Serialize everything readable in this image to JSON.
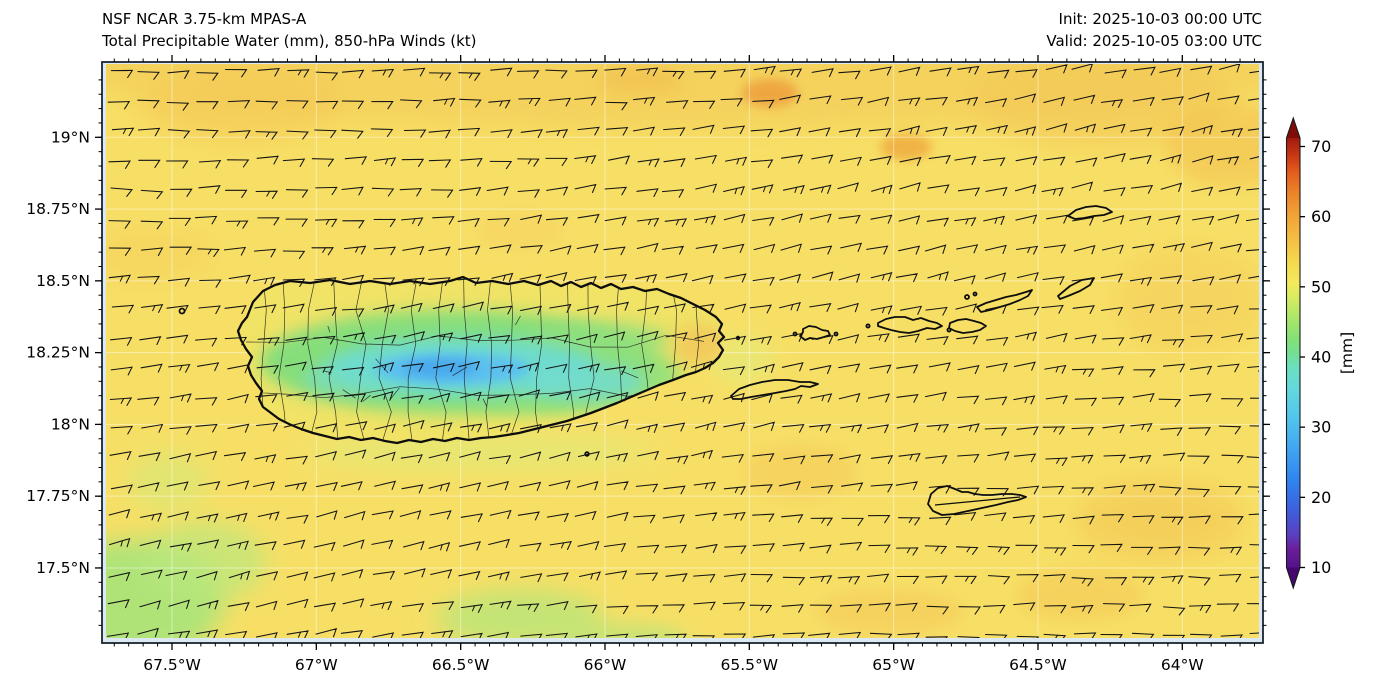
{
  "header": {
    "model": "NSF NCAR 3.75-km MPAS-A",
    "field": "Total Precipitable Water (mm), 850-hPa Winds (kt)",
    "init": "Init: 2025-10-03 00:00 UTC",
    "valid": "Valid: 2025-10-05 03:00 UTC"
  },
  "axes": {
    "x_tick_labels": [
      "67.5°W",
      "67°W",
      "66.5°W",
      "66°W",
      "65.5°W",
      "65°W",
      "64.5°W",
      "64°W"
    ],
    "x_tick_lons": [
      -67.5,
      -67.0,
      -66.5,
      -66.0,
      -65.5,
      -65.0,
      -64.5,
      -64.0
    ],
    "y_tick_labels": [
      "19°N",
      "18.75°N",
      "18.5°N",
      "18.25°N",
      "18°N",
      "17.75°N",
      "17.5°N"
    ],
    "y_tick_lats": [
      19.0,
      18.75,
      18.5,
      18.25,
      18.0,
      17.75,
      17.5
    ]
  },
  "colorbar": {
    "label": "[mm]",
    "tick_labels": [
      "10",
      "20",
      "30",
      "40",
      "50",
      "60",
      "70"
    ],
    "tick_values": [
      10,
      20,
      30,
      40,
      50,
      60,
      70
    ],
    "vmin": 10,
    "vmax": 70,
    "arrow_top_color": "#7e0d0a",
    "arrow_bottom_color": "#45076f",
    "stops": [
      {
        "v": 9.4,
        "c": "#53128a"
      },
      {
        "v": 12,
        "c": "#6b1d9a"
      },
      {
        "v": 14,
        "c": "#5a3fc0"
      },
      {
        "v": 18,
        "c": "#3b63e0"
      },
      {
        "v": 22,
        "c": "#2f86f0"
      },
      {
        "v": 27,
        "c": "#43aaf2"
      },
      {
        "v": 31,
        "c": "#52c6ec"
      },
      {
        "v": 35,
        "c": "#63d9dc"
      },
      {
        "v": 38,
        "c": "#6cdfc0"
      },
      {
        "v": 40,
        "c": "#74df93"
      },
      {
        "v": 42,
        "c": "#83e077"
      },
      {
        "v": 45,
        "c": "#abe668"
      },
      {
        "v": 48,
        "c": "#d9ec60"
      },
      {
        "v": 50,
        "c": "#f3ea5c"
      },
      {
        "v": 53,
        "c": "#f6d94f"
      },
      {
        "v": 56,
        "c": "#f5c044"
      },
      {
        "v": 60,
        "c": "#f0a035"
      },
      {
        "v": 63,
        "c": "#ec8228"
      },
      {
        "v": 66,
        "c": "#e25b1c"
      },
      {
        "v": 68,
        "c": "#cc3a13"
      },
      {
        "v": 70.7,
        "c": "#a01a0d"
      }
    ]
  },
  "map_colors": {
    "ocean_base": "#f7df66",
    "ocean_top_band": "#f3cc58",
    "orange_patch": "#efa53d",
    "green_patch": "#aae57b",
    "island_base": "#f0e366",
    "island_green": "#86de7a",
    "island_cyan": "#6edccd",
    "island_blue": "#4aa9ec",
    "plot_background": "#dde9f2",
    "border": "#1a2530",
    "barb": "#141414"
  },
  "chart_data": {
    "type": "heatmap",
    "title": "NSF NCAR 3.75-km MPAS-A — Total Precipitable Water (mm), 850-hPa Winds (kt)",
    "field": "Total Precipitable Water",
    "units": "mm",
    "overlay": "850-hPa wind barbs (kt)",
    "init_time": "2025-10-03 00:00 UTC",
    "valid_time": "2025-10-05 03:00 UTC",
    "extent": {
      "lon_min": -67.74,
      "lon_max": -63.72,
      "lat_min": 17.24,
      "lat_max": 19.26
    },
    "x_ticks_deg": [
      -67.5,
      -67.0,
      -66.5,
      -66.0,
      -65.5,
      -65.0,
      -64.5,
      -64.0
    ],
    "y_ticks_deg": [
      19.0,
      18.75,
      18.5,
      18.25,
      18.0,
      17.75,
      17.5
    ],
    "colorbar_range": [
      10,
      70
    ],
    "colorbar_ticks": [
      10,
      20,
      30,
      40,
      50,
      60,
      70
    ],
    "colorbar_extended_both_ends": true,
    "field_summary": {
      "ocean_tpw_mm": [
        44,
        48
      ],
      "ocean_orange_patches_mm": [
        50,
        54
      ],
      "ocean_green_patches_sw_mm": [
        40,
        43
      ],
      "puerto_rico_interior_typical_mm": [
        28,
        40
      ],
      "puerto_rico_interior_min_mm": 26,
      "gradient_note": "TPW minimum (blue/cyan) over central Puerto Rico cordillera; yellow ~45 mm over surrounding ocean; slightly higher (orange) band along northern edge"
    },
    "winds": {
      "level_hPa": 850,
      "direction": "easterly trade winds (from ENE–E)",
      "speed_kt": [
        10,
        15
      ],
      "barbs": "single full barb (10 kt), occasional additional half barb (15 kt)"
    },
    "landmarks": [
      "Puerto Rico",
      "Desecheo",
      "Caja de Muertos",
      "Vieques",
      "Culebra",
      "St. Thomas",
      "St. John",
      "Tortola",
      "Virgin Gorda",
      "Anegada",
      "St. Croix"
    ],
    "legend_position": "right colorbar",
    "grid": "faint graticule at labeled ticks"
  }
}
